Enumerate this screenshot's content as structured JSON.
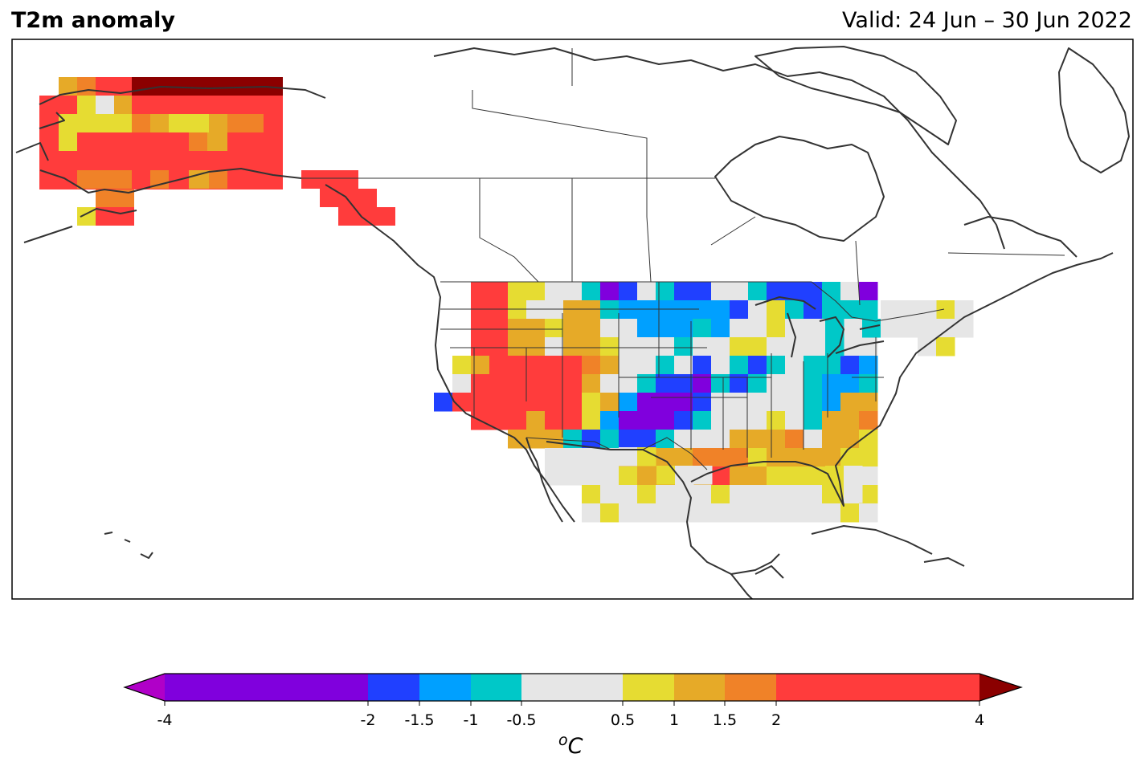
{
  "header": {
    "title": "T2m anomaly",
    "valid": "Valid: 24 Jun – 30 Jun 2022"
  },
  "legend": {
    "unit_super": "o",
    "unit": "C",
    "ticks": [
      "-4",
      "-2",
      "-1.5",
      "-1",
      "-0.5",
      "0.5",
      "1",
      "1.5",
      "2",
      "4"
    ],
    "bins": [
      {
        "from": -4,
        "to": -2,
        "color": "#8000dd"
      },
      {
        "from": -2,
        "to": -1.5,
        "color": "#2040ff"
      },
      {
        "from": -1.5,
        "to": -1,
        "color": "#00a0ff"
      },
      {
        "from": -1,
        "to": -0.5,
        "color": "#00c8c8"
      },
      {
        "from": -0.5,
        "to": 0.5,
        "color": "#e6e6e6"
      },
      {
        "from": 0.5,
        "to": 1,
        "color": "#e6dc32"
      },
      {
        "from": 1,
        "to": 1.5,
        "color": "#e6aa28"
      },
      {
        "from": 1.5,
        "to": 2,
        "color": "#f08228"
      },
      {
        "from": 2,
        "to": 4,
        "color": "#ff3c3c"
      }
    ],
    "under_color": "#b000c8",
    "over_color": "#8b0000"
  },
  "map_colors": {
    "land_outline": "#333333",
    "border": "#333333",
    "frame": "#000000"
  }
}
